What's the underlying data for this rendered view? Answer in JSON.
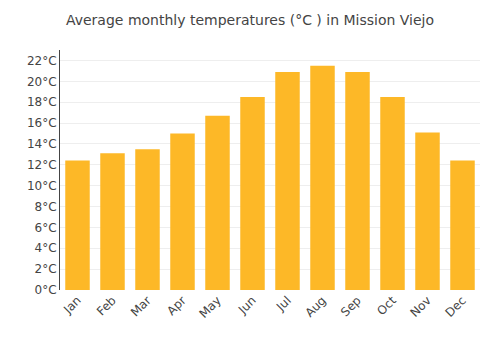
{
  "chart_data": {
    "type": "bar",
    "title": "Average monthly temperatures (°C ) in Mission Viejo",
    "categories": [
      "Jan",
      "Feb",
      "Mar",
      "Apr",
      "May",
      "Jun",
      "Jul",
      "Aug",
      "Sep",
      "Oct",
      "Nov",
      "Dec"
    ],
    "values": [
      12.4,
      13.1,
      13.5,
      15.0,
      16.7,
      18.5,
      20.9,
      21.5,
      20.9,
      18.5,
      15.1,
      12.4
    ],
    "color": "#FDB827",
    "ylim": [
      0,
      23
    ],
    "yticks": [
      {
        "value": 0,
        "label": "0°C"
      },
      {
        "value": 2,
        "label": "2°C"
      },
      {
        "value": 4,
        "label": "4°C"
      },
      {
        "value": 6,
        "label": "6°C"
      },
      {
        "value": 8,
        "label": "8°C"
      },
      {
        "value": 10,
        "label": "10°C"
      },
      {
        "value": 12,
        "label": "12°C"
      },
      {
        "value": 14,
        "label": "14°C"
      },
      {
        "value": 16,
        "label": "16°C"
      },
      {
        "value": 18,
        "label": "18°C"
      },
      {
        "value": 20,
        "label": "20°C"
      },
      {
        "value": 22,
        "label": "22°C"
      }
    ],
    "grid": true
  }
}
